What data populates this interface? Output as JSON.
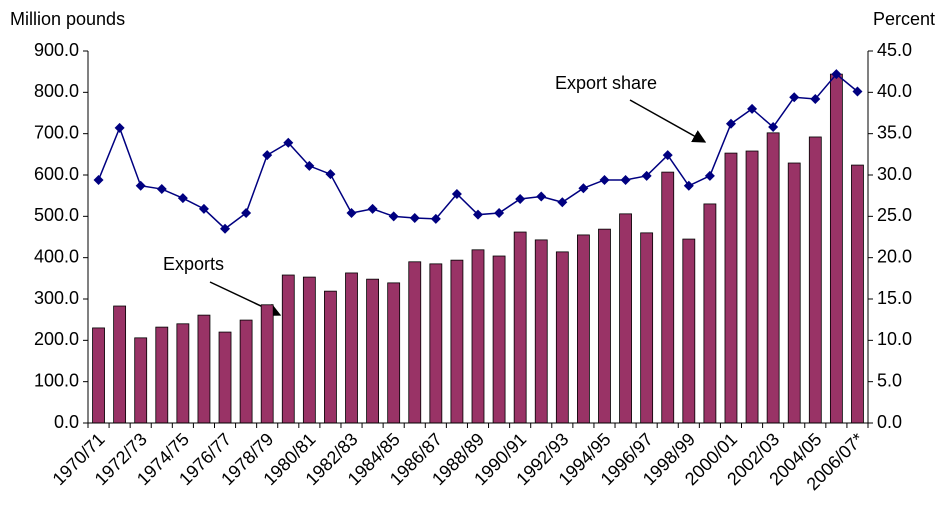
{
  "chart_data": {
    "type": "bar-line",
    "ylabel": "Million pounds",
    "y2label": "Percent",
    "categories": [
      "1970/71",
      null,
      "1972/73",
      null,
      "1974/75",
      null,
      "1976/77",
      null,
      "1978/79",
      null,
      "1980/81",
      null,
      "1982/83",
      null,
      "1984/85",
      null,
      "1986/87",
      null,
      "1988/89",
      null,
      "1990/91",
      null,
      "1992/93",
      null,
      "1994/95",
      null,
      "1996/97",
      null,
      "1998/99",
      null,
      "2000/01",
      null,
      "2002/03",
      null,
      "2004/05",
      null,
      "2006/07*"
    ],
    "series": [
      {
        "name": "Exports",
        "type": "bar",
        "color": "#993366",
        "values": [
          230,
          283,
          206,
          232,
          240,
          261,
          220,
          249,
          286,
          358,
          353,
          319,
          363,
          348,
          339,
          390,
          385,
          394,
          419,
          404,
          462,
          443,
          414,
          455,
          469,
          506,
          460,
          607,
          445,
          530,
          653,
          658,
          702,
          629,
          692,
          844,
          624
        ]
      },
      {
        "name": "Export share",
        "type": "line",
        "axis": "y2",
        "color": "#000080",
        "values": [
          29.4,
          35.7,
          28.7,
          28.3,
          27.2,
          25.9,
          23.5,
          25.4,
          32.4,
          33.9,
          31.1,
          30.1,
          25.4,
          25.9,
          25.0,
          24.8,
          24.7,
          27.7,
          25.2,
          25.4,
          27.1,
          27.4,
          26.7,
          28.4,
          29.4,
          29.4,
          29.9,
          32.4,
          28.7,
          29.9,
          36.2,
          38.0,
          35.8,
          39.4,
          39.2,
          42.2,
          40.1
        ]
      }
    ],
    "ylim": [
      0,
      900
    ],
    "yticks": [
      {
        "value": 0,
        "label": "0.0"
      },
      {
        "value": 100,
        "label": "100.0"
      },
      {
        "value": 200,
        "label": "200.0"
      },
      {
        "value": 300,
        "label": "300.0"
      },
      {
        "value": 400,
        "label": "400.0"
      },
      {
        "value": 500,
        "label": "500.0"
      },
      {
        "value": 600,
        "label": "600.0"
      },
      {
        "value": 700,
        "label": "700.0"
      },
      {
        "value": 800,
        "label": "800.0"
      },
      {
        "value": 900,
        "label": "900.0"
      }
    ],
    "y2lim": [
      0,
      45
    ],
    "y2ticks": [
      {
        "value": 0,
        "label": "0.0"
      },
      {
        "value": 5,
        "label": "5.0"
      },
      {
        "value": 10,
        "label": "10.0"
      },
      {
        "value": 15,
        "label": "15.0"
      },
      {
        "value": 20,
        "label": "20.0"
      },
      {
        "value": 25,
        "label": "25.0"
      },
      {
        "value": 30,
        "label": "30.0"
      },
      {
        "value": 35,
        "label": "35.0"
      },
      {
        "value": 40,
        "label": "40.0"
      },
      {
        "value": 45,
        "label": "45.0"
      }
    ],
    "grid": false
  }
}
